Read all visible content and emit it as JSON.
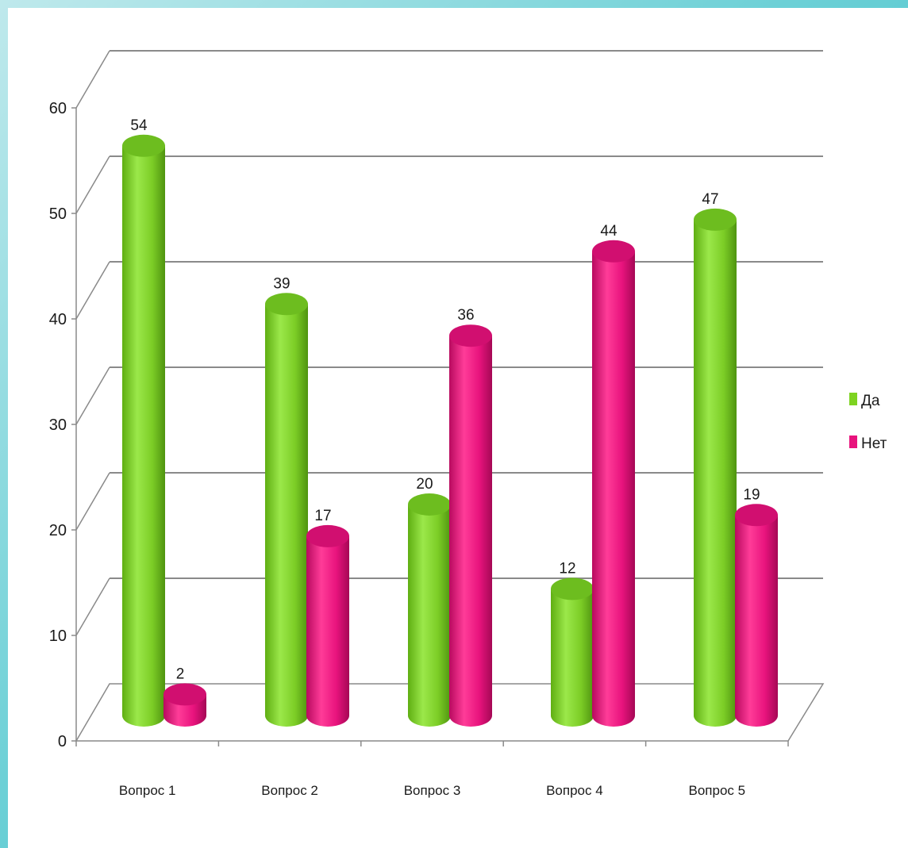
{
  "chart_data": {
    "type": "bar",
    "categories": [
      "Вопрос 1",
      "Вопрос 2",
      "Вопрос 3",
      "Вопрос  4",
      "Вопрос 5"
    ],
    "series": [
      {
        "name": "Да",
        "values": [
          54,
          39,
          20,
          12,
          47
        ],
        "color": "#7ed321"
      },
      {
        "name": "Нет",
        "values": [
          2,
          17,
          36,
          44,
          19
        ],
        "color": "#e8137d"
      }
    ],
    "ylim": [
      0,
      60
    ],
    "yticks": [
      0,
      10,
      20,
      30,
      40,
      50,
      60
    ],
    "grid": true,
    "legend": "right",
    "style": "3d-cylinder"
  }
}
